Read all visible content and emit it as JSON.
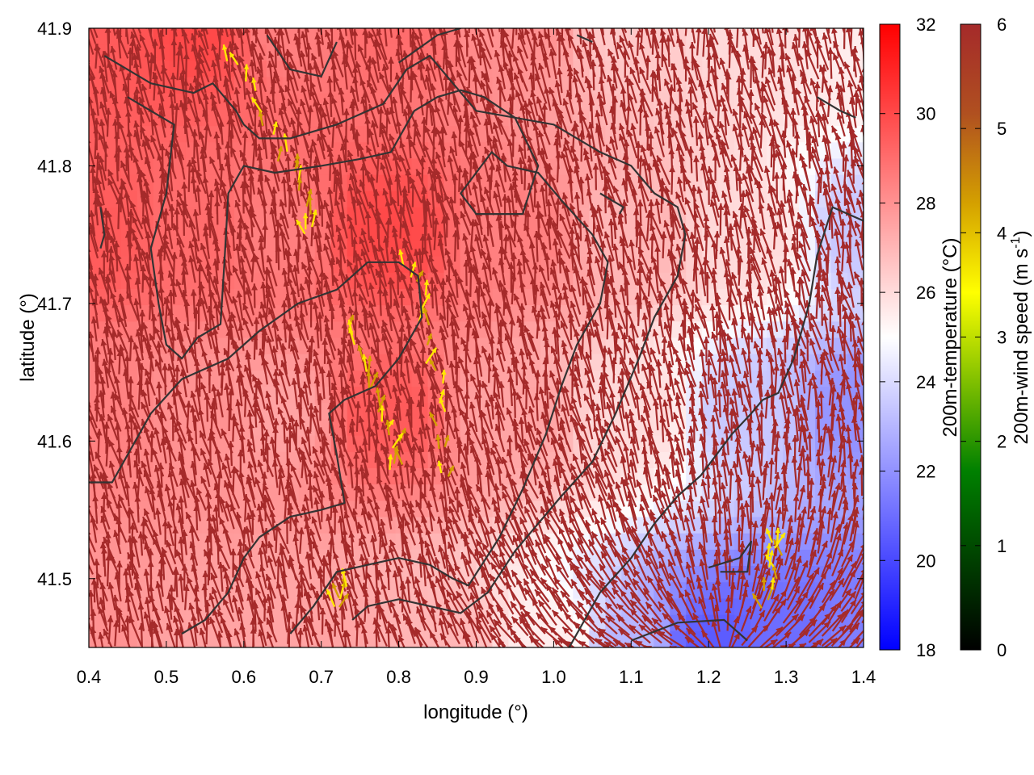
{
  "chart_data": {
    "type": "heatmap",
    "subtype": "temperature field with wind vectors and contours",
    "xlabel": "longitude (°)",
    "ylabel": "latitude (°)",
    "xlim": [
      0.4,
      1.4
    ],
    "ylim": [
      41.45,
      41.9
    ],
    "x_ticks": [
      "0.4",
      "0.5",
      "0.6",
      "0.7",
      "0.8",
      "0.9",
      "1.0",
      "1.1",
      "1.2",
      "1.3",
      "1.4"
    ],
    "y_ticks": [
      "41.5",
      "41.6",
      "41.7",
      "41.8",
      "41.9"
    ],
    "colorbars": [
      {
        "name": "temperature",
        "label": "200m-temperature (°C)",
        "range": [
          18,
          32
        ],
        "ticks": [
          "18",
          "20",
          "22",
          "24",
          "26",
          "28",
          "30",
          "32"
        ],
        "colors": [
          "#0000ff",
          "#ffffff",
          "#ff0000"
        ]
      },
      {
        "name": "wind",
        "label_main": "200m-wind speed (m s",
        "label_sup": "-1",
        "label_end": ")",
        "range": [
          0,
          6
        ],
        "ticks": [
          "0",
          "1",
          "2",
          "3",
          "4",
          "5",
          "6"
        ],
        "colors": [
          "#000000",
          "#004000",
          "#008000",
          "#80c000",
          "#ffff00",
          "#d4a000",
          "#b05020",
          "#a52a2a"
        ]
      }
    ],
    "temperature_field": [
      {
        "lon": 0.4,
        "lat": 41.9,
        "t": 29.5
      },
      {
        "lon": 0.55,
        "lat": 41.9,
        "t": 30.0
      },
      {
        "lon": 0.65,
        "lat": 41.9,
        "t": 28.5
      },
      {
        "lon": 0.8,
        "lat": 41.9,
        "t": 29.0
      },
      {
        "lon": 0.95,
        "lat": 41.9,
        "t": 28.0
      },
      {
        "lon": 1.1,
        "lat": 41.9,
        "t": 26.5
      },
      {
        "lon": 1.25,
        "lat": 41.9,
        "t": 26.0
      },
      {
        "lon": 1.4,
        "lat": 41.9,
        "t": 25.5
      },
      {
        "lon": 0.4,
        "lat": 41.75,
        "t": 29.5
      },
      {
        "lon": 0.55,
        "lat": 41.75,
        "t": 29.0
      },
      {
        "lon": 0.65,
        "lat": 41.75,
        "t": 28.5
      },
      {
        "lon": 0.78,
        "lat": 41.75,
        "t": 30.0
      },
      {
        "lon": 0.95,
        "lat": 41.75,
        "t": 28.5
      },
      {
        "lon": 1.1,
        "lat": 41.75,
        "t": 27.0
      },
      {
        "lon": 1.25,
        "lat": 41.75,
        "t": 26.0
      },
      {
        "lon": 1.4,
        "lat": 41.75,
        "t": 23.5
      },
      {
        "lon": 0.4,
        "lat": 41.62,
        "t": 28.5
      },
      {
        "lon": 0.55,
        "lat": 41.62,
        "t": 28.0
      },
      {
        "lon": 0.65,
        "lat": 41.62,
        "t": 27.5
      },
      {
        "lon": 0.78,
        "lat": 41.62,
        "t": 29.5
      },
      {
        "lon": 0.95,
        "lat": 41.62,
        "t": 27.5
      },
      {
        "lon": 1.1,
        "lat": 41.62,
        "t": 26.0
      },
      {
        "lon": 1.25,
        "lat": 41.62,
        "t": 23.5
      },
      {
        "lon": 1.4,
        "lat": 41.62,
        "t": 22.0
      },
      {
        "lon": 0.4,
        "lat": 41.45,
        "t": 28.0
      },
      {
        "lon": 0.55,
        "lat": 41.45,
        "t": 27.5
      },
      {
        "lon": 0.7,
        "lat": 41.45,
        "t": 27.5
      },
      {
        "lon": 0.85,
        "lat": 41.45,
        "t": 27.0
      },
      {
        "lon": 1.0,
        "lat": 41.45,
        "t": 25.5
      },
      {
        "lon": 1.1,
        "lat": 41.45,
        "t": 23.0
      },
      {
        "lon": 1.2,
        "lat": 41.45,
        "t": 20.5
      },
      {
        "lon": 1.3,
        "lat": 41.45,
        "t": 21.0
      },
      {
        "lon": 1.4,
        "lat": 41.45,
        "t": 21.5
      }
    ],
    "contours": [
      [
        [
          0.42,
          41.88
        ],
        [
          0.48,
          41.86
        ],
        [
          0.535,
          41.853
        ],
        [
          0.56,
          41.86
        ],
        [
          0.59,
          41.84
        ],
        [
          0.6,
          41.83
        ],
        [
          0.62,
          41.82
        ],
        [
          0.66,
          41.82
        ],
        [
          0.69,
          41.825
        ],
        [
          0.72,
          41.83
        ],
        [
          0.74,
          41.835
        ],
        [
          0.78,
          41.845
        ],
        [
          0.81,
          41.87
        ],
        [
          0.84,
          41.88
        ],
        [
          0.87,
          41.86
        ],
        [
          0.9,
          41.84
        ],
        [
          0.95,
          41.835
        ],
        [
          1.0,
          41.83
        ],
        [
          1.03,
          41.82
        ],
        [
          1.06,
          41.81
        ],
        [
          1.1,
          41.8
        ],
        [
          1.13,
          41.78
        ],
        [
          1.16,
          41.77
        ],
        [
          1.17,
          41.75
        ],
        [
          1.16,
          41.72
        ],
        [
          1.13,
          41.69
        ],
        [
          1.11,
          41.66
        ],
        [
          1.08,
          41.62
        ],
        [
          1.05,
          41.585
        ],
        [
          1.01,
          41.56
        ],
        [
          0.98,
          41.54
        ],
        [
          0.95,
          41.52
        ],
        [
          0.915,
          41.49
        ],
        [
          0.88,
          41.475
        ],
        [
          0.84,
          41.48
        ],
        [
          0.8,
          41.485
        ],
        [
          0.76,
          41.48
        ],
        [
          0.74,
          41.47
        ]
      ],
      [
        [
          0.52,
          41.46
        ],
        [
          0.55,
          41.47
        ],
        [
          0.58,
          41.49
        ],
        [
          0.6,
          41.515
        ],
        [
          0.62,
          41.53
        ],
        [
          0.66,
          41.545
        ],
        [
          0.7,
          41.55
        ],
        [
          0.73,
          41.555
        ],
        [
          0.72,
          41.59
        ],
        [
          0.71,
          41.62
        ],
        [
          0.73,
          41.63
        ],
        [
          0.77,
          41.64
        ],
        [
          0.8,
          41.66
        ],
        [
          0.83,
          41.69
        ],
        [
          0.825,
          41.72
        ],
        [
          0.8,
          41.73
        ],
        [
          0.76,
          41.73
        ],
        [
          0.72,
          41.71
        ],
        [
          0.67,
          41.7
        ],
        [
          0.62,
          41.68
        ],
        [
          0.58,
          41.66
        ],
        [
          0.52,
          41.645
        ],
        [
          0.48,
          41.62
        ],
        [
          0.44,
          41.58
        ],
        [
          0.43,
          41.57
        ],
        [
          0.4,
          41.57
        ]
      ],
      [
        [
          0.66,
          41.46
        ],
        [
          0.69,
          41.48
        ],
        [
          0.72,
          41.505
        ],
        [
          0.76,
          41.51
        ],
        [
          0.8,
          41.515
        ],
        [
          0.84,
          41.51
        ],
        [
          0.87,
          41.5
        ],
        [
          0.89,
          41.495
        ],
        [
          0.93,
          41.53
        ],
        [
          0.96,
          41.565
        ],
        [
          0.99,
          41.605
        ],
        [
          1.01,
          41.64
        ],
        [
          1.03,
          41.67
        ],
        [
          1.06,
          41.7
        ],
        [
          1.07,
          41.73
        ],
        [
          1.05,
          41.75
        ],
        [
          1.01,
          41.775
        ],
        [
          0.98,
          41.795
        ],
        [
          0.94,
          41.8
        ],
        [
          0.92,
          41.81
        ],
        [
          0.88,
          41.78
        ],
        [
          0.9,
          41.765
        ],
        [
          0.96,
          41.765
        ],
        [
          0.98,
          41.8
        ],
        [
          0.95,
          41.835
        ],
        [
          0.91,
          41.85
        ],
        [
          0.88,
          41.855
        ],
        [
          0.85,
          41.85
        ],
        [
          0.82,
          41.84
        ],
        [
          0.79,
          41.81
        ],
        [
          0.75,
          41.805
        ],
        [
          0.7,
          41.8
        ],
        [
          0.64,
          41.795
        ],
        [
          0.6,
          41.8
        ],
        [
          0.58,
          41.78
        ],
        [
          0.575,
          41.73
        ],
        [
          0.57,
          41.685
        ],
        [
          0.54,
          41.675
        ],
        [
          0.52,
          41.66
        ],
        [
          0.5,
          41.67
        ],
        [
          0.49,
          41.7
        ],
        [
          0.48,
          41.74
        ],
        [
          0.5,
          41.78
        ],
        [
          0.51,
          41.83
        ],
        [
          0.48,
          41.84
        ],
        [
          0.45,
          41.85
        ]
      ],
      [
        [
          1.02,
          41.45
        ],
        [
          1.06,
          41.49
        ],
        [
          1.1,
          41.515
        ],
        [
          1.13,
          41.54
        ],
        [
          1.16,
          41.56
        ],
        [
          1.19,
          41.575
        ],
        [
          1.21,
          41.59
        ],
        [
          1.23,
          41.605
        ],
        [
          1.255,
          41.62
        ],
        [
          1.27,
          41.63
        ],
        [
          1.29,
          41.635
        ],
        [
          1.31,
          41.66
        ],
        [
          1.33,
          41.7
        ],
        [
          1.34,
          41.735
        ],
        [
          1.36,
          41.77
        ],
        [
          1.38,
          41.765
        ],
        [
          1.4,
          41.76
        ]
      ],
      [
        [
          1.1,
          41.455
        ],
        [
          1.16,
          41.468
        ],
        [
          1.22,
          41.47
        ],
        [
          1.25,
          41.455
        ]
      ],
      [
        [
          1.2,
          41.508
        ],
        [
          1.24,
          41.515
        ],
        [
          1.255,
          41.527
        ],
        [
          1.25,
          41.505
        ],
        [
          1.215,
          41.505
        ]
      ],
      [
        [
          0.63,
          41.895
        ],
        [
          0.66,
          41.87
        ],
        [
          0.7,
          41.865
        ],
        [
          0.72,
          41.89
        ]
      ],
      [
        [
          0.8,
          41.875
        ],
        [
          0.85,
          41.895
        ],
        [
          0.88,
          41.9
        ]
      ],
      [
        [
          1.06,
          41.78
        ],
        [
          1.09,
          41.77
        ],
        [
          1.085,
          41.765
        ]
      ],
      [
        [
          1.34,
          41.85
        ],
        [
          1.37,
          41.84
        ],
        [
          1.39,
          41.835
        ]
      ],
      [
        [
          1.03,
          41.895
        ],
        [
          1.05,
          41.89
        ]
      ],
      [
        [
          0.415,
          41.77
        ],
        [
          0.42,
          41.75
        ],
        [
          0.415,
          41.74
        ]
      ]
    ],
    "yellow_jets": [
      [
        [
          0.58,
          41.88
        ],
        [
          0.64,
          41.82
        ],
        [
          0.68,
          41.78
        ],
        [
          0.69,
          41.74
        ]
      ],
      [
        [
          0.74,
          41.68
        ],
        [
          0.765,
          41.64
        ],
        [
          0.79,
          41.6
        ],
        [
          0.8,
          41.57
        ]
      ],
      [
        [
          0.815,
          41.73
        ],
        [
          0.84,
          41.68
        ],
        [
          0.855,
          41.62
        ],
        [
          0.86,
          41.56
        ]
      ],
      [
        [
          0.72,
          41.48
        ],
        [
          0.74,
          41.5
        ]
      ],
      [
        [
          1.27,
          41.48
        ],
        [
          1.285,
          41.51
        ],
        [
          1.295,
          41.53
        ]
      ]
    ],
    "wind_pattern": "predominantly south-to-north flow at ~6 m/s, with diverging flow in the south-east"
  }
}
